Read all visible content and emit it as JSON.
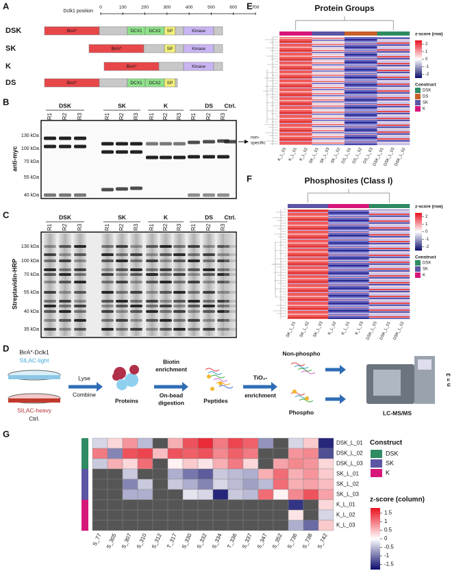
{
  "A": {
    "label": "A",
    "axis_title": "Dclk1 position",
    "xlim": [
      0,
      700
    ],
    "ticks": [
      0,
      100,
      200,
      300,
      400,
      500,
      600,
      700
    ],
    "constructs": [
      {
        "name": "DSK",
        "domains": [
          "BirA*",
          "DCX1",
          "DCX2",
          "SP",
          "Kinase"
        ]
      },
      {
        "name": "SK",
        "domains": [
          "BirA*",
          "SP",
          "Kinase"
        ]
      },
      {
        "name": "K",
        "domains": [
          "BirA*",
          "Kinase"
        ]
      },
      {
        "name": "DS",
        "domains": [
          "BirA*",
          "DCX1",
          "DCX2",
          "SP"
        ]
      }
    ]
  },
  "B": {
    "label": "B",
    "groups": [
      {
        "name": "DSK",
        "lanes": [
          "R1",
          "R2",
          "R3"
        ]
      },
      {
        "name": "SK",
        "lanes": [
          "R1",
          "R2",
          "R3"
        ]
      },
      {
        "name": "K",
        "lanes": [
          "R1",
          "R2",
          "R3"
        ]
      },
      {
        "name": "DS",
        "lanes": [
          "R1",
          "R2",
          "R3"
        ]
      },
      {
        "name": "Ctrl.",
        "lanes": []
      }
    ],
    "markers": [
      "130 kDa",
      "100 kDa",
      "70 kDa",
      "55 kDa",
      "40 kDa"
    ],
    "y_label": "anti-myc",
    "annotation": [
      "non-",
      "specific"
    ]
  },
  "C": {
    "label": "C",
    "groups": [
      {
        "name": "DSK",
        "lanes": [
          "R1",
          "R2",
          "R3"
        ]
      },
      {
        "name": "SK",
        "lanes": [
          "R1",
          "R2",
          "R3"
        ]
      },
      {
        "name": "K",
        "lanes": [
          "R1",
          "R2",
          "R3"
        ]
      },
      {
        "name": "DS",
        "lanes": [
          "R1",
          "R2",
          "R3"
        ]
      },
      {
        "name": "Ctrl.",
        "lanes": []
      }
    ],
    "markers": [
      "130 kDa",
      "100 kDa",
      "70 kDa",
      "55 kDa",
      "40 kDa",
      "35 kDa"
    ],
    "y_label": "Streptavidin-HRP"
  },
  "D": {
    "label": "D",
    "bait": "BirA*-Dclk1",
    "light": "SILAC-light",
    "heavy": "SILAC-heavy",
    "ctrl": "Ctrl.",
    "lyse": "Lyse",
    "combine": "Combine",
    "proteins": "Proteins",
    "biotin": [
      "Biotin",
      "enrichment"
    ],
    "digestion": [
      "On-bead",
      "digestion"
    ],
    "peptides": "Peptides",
    "tio2": [
      "TiO₂-",
      "enrichment"
    ],
    "non_phospho": "Non-phospho",
    "phospho": "Phospho",
    "instrument": "LC-MS/MS",
    "n": "n = 3"
  },
  "E": {
    "label": "E",
    "title": "Protein Groups",
    "columns": [
      "K_L_03",
      "K_L_01",
      "K_L_02",
      "SK_L_01",
      "SK_L_03",
      "SK_L_02",
      "DS_L_01",
      "DS_L_02",
      "DS_L_03",
      "DSK_L_01",
      "DSK_L_03",
      "DSK_L_02"
    ],
    "colorbar_title": "z-score (row)",
    "zlim": [
      -2.5,
      2.5
    ],
    "colorbar_ticks": [
      2,
      1,
      0,
      -1,
      -2
    ],
    "legend_title": "Construct",
    "legend": [
      {
        "name": "DSK",
        "color": "#2e8b63"
      },
      {
        "name": "DS",
        "color": "#c8602a"
      },
      {
        "name": "SK",
        "color": "#5b55a4"
      },
      {
        "name": "K",
        "color": "#d6177a"
      }
    ]
  },
  "F": {
    "label": "F",
    "title": "Phosphosites (Class I)",
    "columns": [
      "SK_L_01",
      "SK_L_02",
      "SK_L_03",
      "K_L_02",
      "K_L_01",
      "K_L_03",
      "DSK_L_03",
      "DSK_L_01",
      "DSK_L_02"
    ],
    "colorbar_title": "z-score (row)",
    "zlim": [
      -2.5,
      2.5
    ],
    "colorbar_ticks": [
      2,
      1,
      0,
      -1,
      -2
    ],
    "legend_title": "Construct",
    "legend": [
      {
        "name": "DSK",
        "color": "#2e8b63"
      },
      {
        "name": "SK",
        "color": "#5b55a4"
      },
      {
        "name": "K",
        "color": "#d6177a"
      }
    ]
  },
  "G": {
    "label": "G",
    "type": "heatmap",
    "columns": [
      "S_77",
      "S_305",
      "S_307",
      "S_310",
      "S_312",
      "T_317",
      "S_330",
      "S_332",
      "S_334",
      "T_336",
      "S_337",
      "S_347",
      "S_352",
      "S_736",
      "S_738",
      "S_742"
    ],
    "rows": [
      "DSK_L_01",
      "DSK_L_02",
      "DSK_L_03",
      "SK_L_01",
      "SK_L_02",
      "SK_L_03",
      "K_L_01",
      "K_L_02",
      "K_L_03"
    ],
    "values": [
      [
        -0.3,
        0.3,
        0.8,
        -0.5,
        null,
        0.6,
        1.3,
        1.6,
        1.0,
        1.4,
        1.2,
        -0.8,
        null,
        -0.3,
        0.4,
        -1.6
      ],
      [
        1.0,
        -0.9,
        1.3,
        1.4,
        0.5,
        1.3,
        1.2,
        1.3,
        0.9,
        1.2,
        1.0,
        null,
        null,
        0.8,
        0.9,
        -1.3
      ],
      [
        -0.4,
        0.6,
        0.3,
        1.1,
        null,
        0.1,
        0.4,
        0.2,
        0.6,
        1.0,
        0.3,
        null,
        0.7,
        0.9,
        0.8,
        0.3
      ],
      [
        null,
        null,
        -0.4,
        null,
        null,
        -0.6,
        -1.0,
        -1.2,
        -0.4,
        -0.5,
        -0.6,
        0.6,
        1.1,
        0.6,
        0.8,
        0.4
      ],
      [
        null,
        null,
        -0.9,
        -0.4,
        null,
        -0.4,
        -0.6,
        -0.9,
        -0.3,
        -0.5,
        -0.7,
        -0.5,
        1.1,
        0.6,
        0.7,
        0.5
      ],
      [
        null,
        null,
        -0.6,
        -0.6,
        null,
        null,
        -0.2,
        -0.3,
        -1.6,
        -0.4,
        -0.5,
        1.1,
        0.1,
        0.9,
        1.3,
        0.7
      ],
      [
        null,
        null,
        null,
        null,
        null,
        null,
        null,
        null,
        null,
        null,
        null,
        null,
        null,
        -1.5,
        null,
        0.3
      ],
      [
        null,
        null,
        null,
        null,
        null,
        null,
        null,
        null,
        null,
        null,
        null,
        null,
        null,
        0.2,
        null,
        -0.3
      ],
      [
        null,
        null,
        null,
        null,
        null,
        null,
        null,
        null,
        null,
        null,
        null,
        null,
        null,
        -0.6,
        -1.1,
        0.4
      ]
    ],
    "legend_title": "Construct",
    "legend": [
      {
        "name": "DSK",
        "color": "#2e8b63"
      },
      {
        "name": "SK",
        "color": "#5b55a4"
      },
      {
        "name": "K",
        "color": "#d6177a"
      }
    ],
    "colorbar_title": "z-score (column)",
    "zlim": [
      -1.8,
      1.8
    ],
    "zticks": [
      1.5,
      1,
      0.5,
      0,
      -0.5,
      -1,
      -1.5
    ],
    "colors": {
      "low": "#0b0b6b",
      "mid": "#ffffff",
      "high": "#e8101e",
      "missing": "#555555"
    }
  }
}
